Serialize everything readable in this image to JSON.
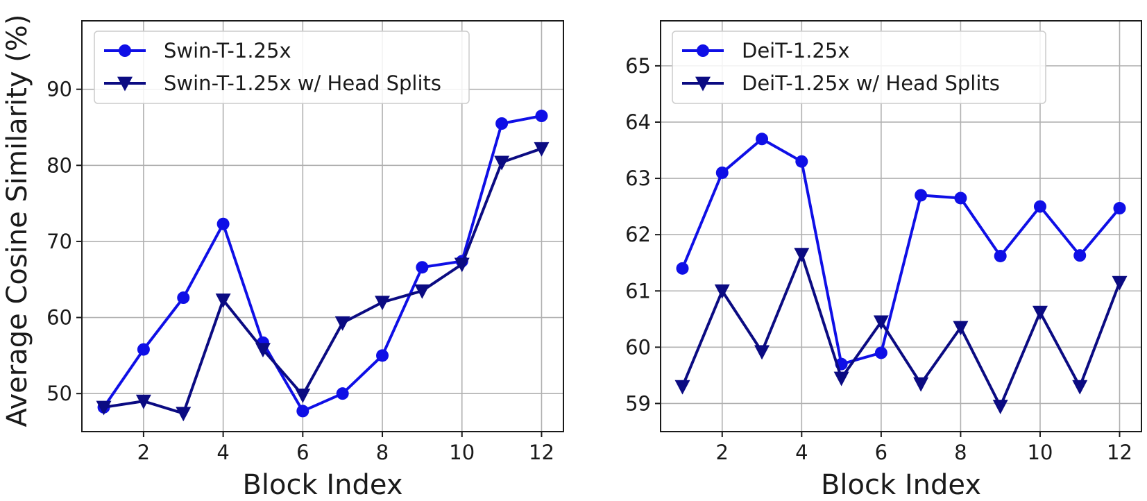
{
  "chart_data": [
    {
      "type": "line",
      "xlabel": "Block Index",
      "ylabel": "Average Cosine Similarity (%)",
      "xlim": [
        0.45,
        12.55
      ],
      "ylim": [
        45,
        99
      ],
      "xticks": [
        2,
        4,
        6,
        8,
        10,
        12
      ],
      "yticks": [
        50,
        60,
        70,
        80,
        90
      ],
      "grid": true,
      "legend_position": "top-left",
      "x": [
        1,
        2,
        3,
        4,
        5,
        6,
        7,
        8,
        9,
        10,
        11,
        12
      ],
      "series": [
        {
          "name": "Swin-T-1.25x",
          "marker": "circle",
          "color": "#0f0fe6",
          "values": [
            48.2,
            55.8,
            62.6,
            72.3,
            56.7,
            47.7,
            50.0,
            55.0,
            66.6,
            67.4,
            85.5,
            86.5
          ]
        },
        {
          "name": "Swin-T-1.25x w/ Head Splits",
          "marker": "triangle-down",
          "color": "#0b0b82",
          "values": [
            48.2,
            49.0,
            47.4,
            62.3,
            55.8,
            49.8,
            59.3,
            62.0,
            63.5,
            67.0,
            80.4,
            82.2
          ]
        }
      ]
    },
    {
      "type": "line",
      "xlabel": "Block Index",
      "ylabel": "",
      "xlim": [
        0.45,
        12.55
      ],
      "ylim": [
        58.5,
        65.8
      ],
      "xticks": [
        2,
        4,
        6,
        8,
        10,
        12
      ],
      "yticks": [
        59,
        60,
        61,
        62,
        63,
        64,
        65
      ],
      "grid": true,
      "legend_position": "top-left",
      "x": [
        1,
        2,
        3,
        4,
        5,
        6,
        7,
        8,
        9,
        10,
        11,
        12
      ],
      "series": [
        {
          "name": "DeiT-1.25x",
          "marker": "circle",
          "color": "#0f0fe6",
          "values": [
            61.4,
            63.1,
            63.7,
            63.3,
            59.7,
            59.9,
            62.7,
            62.65,
            61.62,
            62.5,
            61.63,
            62.47
          ]
        },
        {
          "name": "DeiT-1.25x w/ Head Splits",
          "marker": "triangle-down",
          "color": "#0b0b82",
          "values": [
            59.3,
            61.0,
            59.92,
            61.65,
            59.45,
            60.45,
            59.35,
            60.35,
            58.95,
            60.62,
            59.3,
            61.15
          ]
        }
      ]
    }
  ]
}
